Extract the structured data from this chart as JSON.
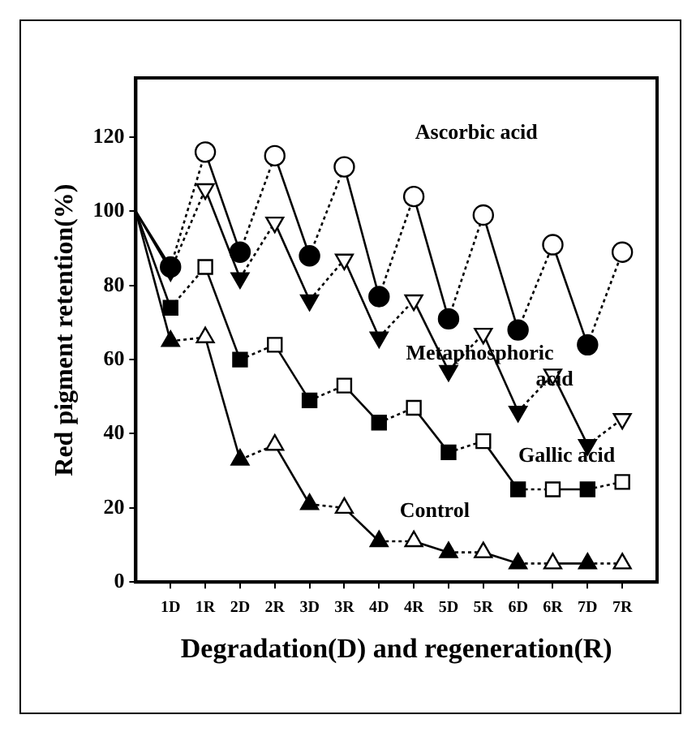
{
  "chart_data": {
    "type": "line",
    "xlabel": "Degradation(D) and regeneration(R)",
    "ylabel": "Red pigment retention(%)",
    "categories": [
      null,
      "1D",
      "1R",
      "2D",
      "2R",
      "3D",
      "3R",
      "4D",
      "4R",
      "5D",
      "5R",
      "6D",
      "6R",
      "7D",
      "7R"
    ],
    "ylim": [
      0,
      136
    ],
    "yticks": [
      0,
      20,
      40,
      60,
      80,
      100,
      120
    ],
    "grid": false,
    "legend": false,
    "series": [
      {
        "name": "Ascorbic acid",
        "color": "#000000",
        "marker": "circle",
        "values": [
          100,
          85,
          116,
          89,
          115,
          88,
          112,
          77,
          104,
          71,
          99,
          68,
          91,
          64,
          89
        ]
      },
      {
        "name": "Metaphosphoric acid",
        "color": "#000000",
        "marker": "triangle",
        "values": [
          100,
          84,
          106,
          82,
          97,
          76,
          87,
          66,
          76,
          57,
          67,
          46,
          56,
          37,
          44
        ]
      },
      {
        "name": "Gallic acid",
        "color": "#000000",
        "marker": "square",
        "values": [
          100,
          74,
          85,
          60,
          64,
          49,
          53,
          43,
          47,
          35,
          38,
          25,
          25,
          25,
          27
        ]
      },
      {
        "name": "Control",
        "color": "#000000",
        "marker": "triangle",
        "values": [
          100,
          65,
          66,
          33,
          37,
          21,
          20,
          11,
          11,
          8,
          8,
          5,
          5,
          5,
          5
        ]
      }
    ]
  }
}
